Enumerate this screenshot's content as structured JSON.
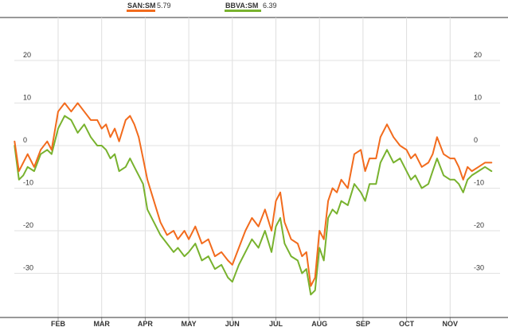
{
  "chart_data": {
    "type": "line",
    "title": "",
    "xlabel": "",
    "ylabel": "",
    "grid": true,
    "legend_placement": "top-left",
    "ylim": [
      -40,
      30
    ],
    "yticks": [
      20,
      10,
      0,
      -10,
      -20,
      -30
    ],
    "xlim": [
      0,
      11.05
    ],
    "x_tick_labels": [
      {
        "label": "FEB",
        "x": 1.0
      },
      {
        "label": "MAR",
        "x": 2.0
      },
      {
        "label": "APR",
        "x": 3.0
      },
      {
        "label": "MAY",
        "x": 4.0
      },
      {
        "label": "JUN",
        "x": 5.0
      },
      {
        "label": "JUL",
        "x": 6.0
      },
      {
        "label": "AUG",
        "x": 7.0
      },
      {
        "label": "SEP",
        "x": 8.0
      },
      {
        "label": "OCT",
        "x": 9.0
      },
      {
        "label": "NOV",
        "x": 10.0
      }
    ],
    "series": [
      {
        "name": "SAN:SM",
        "legend_value": "5.79",
        "color": "#f26b1d",
        "points": [
          [
            0.0,
            1
          ],
          [
            0.1,
            -6
          ],
          [
            0.2,
            -4
          ],
          [
            0.3,
            -2
          ],
          [
            0.45,
            -5
          ],
          [
            0.6,
            -1
          ],
          [
            0.75,
            1
          ],
          [
            0.85,
            -1
          ],
          [
            1.0,
            8
          ],
          [
            1.15,
            10
          ],
          [
            1.3,
            8
          ],
          [
            1.45,
            10
          ],
          [
            1.6,
            8
          ],
          [
            1.75,
            6
          ],
          [
            1.9,
            6
          ],
          [
            2.0,
            4
          ],
          [
            2.1,
            5
          ],
          [
            2.2,
            2
          ],
          [
            2.3,
            4
          ],
          [
            2.4,
            1
          ],
          [
            2.55,
            6
          ],
          [
            2.65,
            7
          ],
          [
            2.75,
            5
          ],
          [
            2.85,
            2
          ],
          [
            2.95,
            -3
          ],
          [
            3.05,
            -8
          ],
          [
            3.2,
            -13
          ],
          [
            3.35,
            -18
          ],
          [
            3.5,
            -21
          ],
          [
            3.65,
            -20
          ],
          [
            3.75,
            -22
          ],
          [
            3.9,
            -20
          ],
          [
            4.0,
            -22
          ],
          [
            4.15,
            -19
          ],
          [
            4.3,
            -23
          ],
          [
            4.45,
            -22
          ],
          [
            4.6,
            -26
          ],
          [
            4.75,
            -25
          ],
          [
            4.9,
            -27
          ],
          [
            5.0,
            -28
          ],
          [
            5.15,
            -24
          ],
          [
            5.3,
            -20
          ],
          [
            5.45,
            -17
          ],
          [
            5.6,
            -19
          ],
          [
            5.75,
            -15
          ],
          [
            5.9,
            -20
          ],
          [
            6.0,
            -13
          ],
          [
            6.1,
            -11
          ],
          [
            6.2,
            -18
          ],
          [
            6.35,
            -22
          ],
          [
            6.5,
            -23
          ],
          [
            6.6,
            -26
          ],
          [
            6.7,
            -25
          ],
          [
            6.8,
            -33
          ],
          [
            6.9,
            -31
          ],
          [
            7.0,
            -20
          ],
          [
            7.1,
            -22
          ],
          [
            7.2,
            -13
          ],
          [
            7.3,
            -10
          ],
          [
            7.4,
            -11
          ],
          [
            7.5,
            -8
          ],
          [
            7.65,
            -10
          ],
          [
            7.8,
            -2
          ],
          [
            7.95,
            -1
          ],
          [
            8.05,
            -6
          ],
          [
            8.15,
            -3
          ],
          [
            8.3,
            -3
          ],
          [
            8.4,
            2
          ],
          [
            8.55,
            5
          ],
          [
            8.7,
            2
          ],
          [
            8.85,
            0
          ],
          [
            9.0,
            -1
          ],
          [
            9.1,
            -3
          ],
          [
            9.2,
            -2
          ],
          [
            9.35,
            -5
          ],
          [
            9.5,
            -4
          ],
          [
            9.6,
            -2
          ],
          [
            9.7,
            2
          ],
          [
            9.85,
            -2
          ],
          [
            10.0,
            -3
          ],
          [
            10.1,
            -3
          ],
          [
            10.2,
            -5
          ],
          [
            10.3,
            -8
          ],
          [
            10.4,
            -5
          ],
          [
            10.5,
            -6
          ],
          [
            10.65,
            -5
          ],
          [
            10.8,
            -4
          ],
          [
            10.95,
            -4
          ]
        ]
      },
      {
        "name": "BBVA:SM",
        "legend_value": "6.39",
        "color": "#78b22e",
        "points": [
          [
            0.0,
            0
          ],
          [
            0.1,
            -8
          ],
          [
            0.2,
            -7
          ],
          [
            0.3,
            -5
          ],
          [
            0.45,
            -6
          ],
          [
            0.6,
            -2
          ],
          [
            0.75,
            -1
          ],
          [
            0.85,
            -2
          ],
          [
            1.0,
            4
          ],
          [
            1.15,
            7
          ],
          [
            1.3,
            6
          ],
          [
            1.45,
            3
          ],
          [
            1.6,
            5
          ],
          [
            1.75,
            2
          ],
          [
            1.9,
            0
          ],
          [
            2.0,
            0
          ],
          [
            2.1,
            -1
          ],
          [
            2.2,
            -3
          ],
          [
            2.3,
            -2
          ],
          [
            2.4,
            -6
          ],
          [
            2.55,
            -5
          ],
          [
            2.65,
            -3
          ],
          [
            2.75,
            -5
          ],
          [
            2.85,
            -7
          ],
          [
            2.95,
            -9
          ],
          [
            3.05,
            -15
          ],
          [
            3.2,
            -18
          ],
          [
            3.35,
            -21
          ],
          [
            3.5,
            -23
          ],
          [
            3.65,
            -25
          ],
          [
            3.75,
            -24
          ],
          [
            3.9,
            -26
          ],
          [
            4.0,
            -25
          ],
          [
            4.15,
            -23
          ],
          [
            4.3,
            -27
          ],
          [
            4.45,
            -26
          ],
          [
            4.6,
            -29
          ],
          [
            4.75,
            -28
          ],
          [
            4.9,
            -31
          ],
          [
            5.0,
            -32
          ],
          [
            5.15,
            -28
          ],
          [
            5.3,
            -25
          ],
          [
            5.45,
            -22
          ],
          [
            5.6,
            -24
          ],
          [
            5.75,
            -20
          ],
          [
            5.9,
            -25
          ],
          [
            6.0,
            -19
          ],
          [
            6.1,
            -17
          ],
          [
            6.2,
            -23
          ],
          [
            6.35,
            -26
          ],
          [
            6.5,
            -27
          ],
          [
            6.6,
            -30
          ],
          [
            6.7,
            -29
          ],
          [
            6.8,
            -35
          ],
          [
            6.9,
            -34
          ],
          [
            7.0,
            -24
          ],
          [
            7.1,
            -27
          ],
          [
            7.2,
            -17
          ],
          [
            7.3,
            -15
          ],
          [
            7.4,
            -16
          ],
          [
            7.5,
            -13
          ],
          [
            7.65,
            -14
          ],
          [
            7.8,
            -9
          ],
          [
            7.95,
            -11
          ],
          [
            8.05,
            -13
          ],
          [
            8.15,
            -9
          ],
          [
            8.3,
            -9
          ],
          [
            8.4,
            -4
          ],
          [
            8.55,
            -1
          ],
          [
            8.7,
            -4
          ],
          [
            8.85,
            -3
          ],
          [
            9.0,
            -6
          ],
          [
            9.1,
            -8
          ],
          [
            9.2,
            -7
          ],
          [
            9.35,
            -10
          ],
          [
            9.5,
            -9
          ],
          [
            9.6,
            -6
          ],
          [
            9.7,
            -3
          ],
          [
            9.85,
            -7
          ],
          [
            10.0,
            -8
          ],
          [
            10.1,
            -8
          ],
          [
            10.2,
            -9
          ],
          [
            10.3,
            -11
          ],
          [
            10.4,
            -8
          ],
          [
            10.5,
            -7
          ],
          [
            10.65,
            -6
          ],
          [
            10.8,
            -5
          ],
          [
            10.95,
            -6
          ]
        ]
      }
    ]
  }
}
